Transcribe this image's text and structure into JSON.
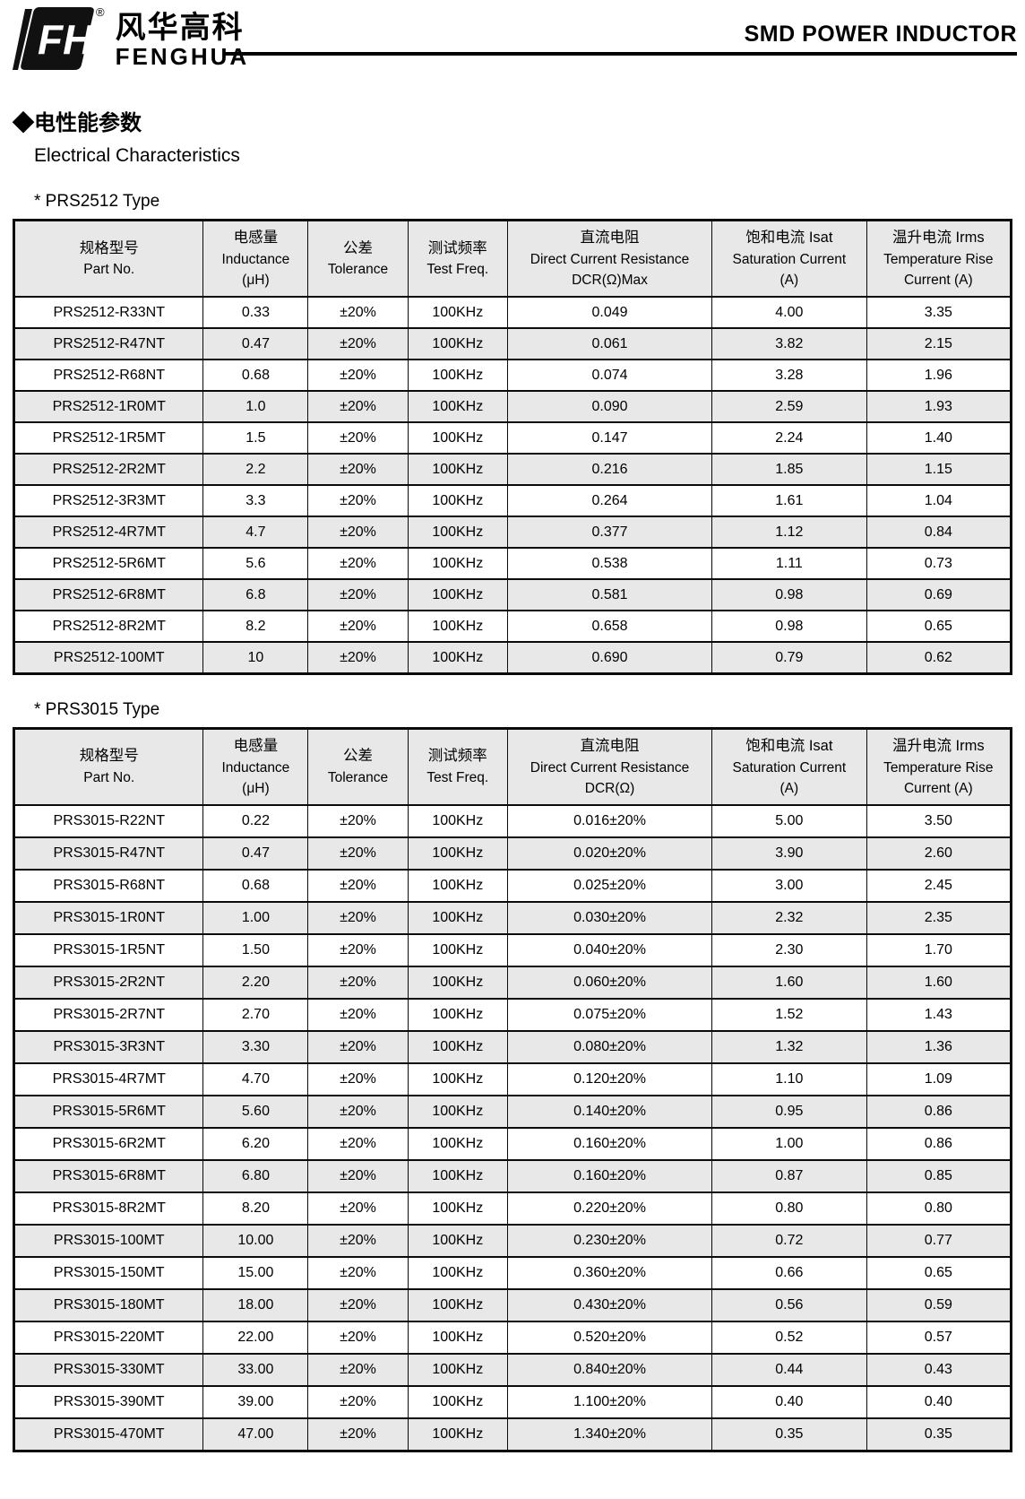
{
  "header": {
    "brand_cn": "风华高科",
    "brand_en": "FENGHUA",
    "registered_mark": "®",
    "doc_title": "SMD POWER INDUCTOR"
  },
  "section": {
    "title_cn": "◆电性能参数",
    "title_en": "Electrical Characteristics"
  },
  "columns": [
    {
      "key": "part_no",
      "lines": [
        "规格型号",
        "Part No."
      ]
    },
    {
      "key": "inductance",
      "lines": [
        "电感量",
        "Inductance",
        "(μH)"
      ]
    },
    {
      "key": "tolerance",
      "lines": [
        "公差",
        "Tolerance"
      ]
    },
    {
      "key": "test_freq",
      "lines": [
        "测试频率",
        "Test Freq."
      ]
    },
    {
      "key": "dcr",
      "lines": [
        "直流电阻",
        "Direct Current Resistance",
        "@DCR_UNIT@"
      ]
    },
    {
      "key": "isat",
      "lines": [
        "饱和电流  Isat",
        "Saturation Current",
        "(A)"
      ]
    },
    {
      "key": "irms",
      "lines": [
        "温升电流  Irms",
        "Temperature Rise",
        "Current (A)"
      ]
    }
  ],
  "tables": [
    {
      "label": "*  PRS2512 Type",
      "dcr_unit": "DCR(Ω)Max",
      "rows": [
        [
          "PRS2512-R33NT",
          "0.33",
          "±20%",
          "100KHz",
          "0.049",
          "4.00",
          "3.35"
        ],
        [
          "PRS2512-R47NT",
          "0.47",
          "±20%",
          "100KHz",
          "0.061",
          "3.82",
          "2.15"
        ],
        [
          "PRS2512-R68NT",
          "0.68",
          "±20%",
          "100KHz",
          "0.074",
          "3.28",
          "1.96"
        ],
        [
          "PRS2512-1R0MT",
          "1.0",
          "±20%",
          "100KHz",
          "0.090",
          "2.59",
          "1.93"
        ],
        [
          "PRS2512-1R5MT",
          "1.5",
          "±20%",
          "100KHz",
          "0.147",
          "2.24",
          "1.40"
        ],
        [
          "PRS2512-2R2MT",
          "2.2",
          "±20%",
          "100KHz",
          "0.216",
          "1.85",
          "1.15"
        ],
        [
          "PRS2512-3R3MT",
          "3.3",
          "±20%",
          "100KHz",
          "0.264",
          "1.61",
          "1.04"
        ],
        [
          "PRS2512-4R7MT",
          "4.7",
          "±20%",
          "100KHz",
          "0.377",
          "1.12",
          "0.84"
        ],
        [
          "PRS2512-5R6MT",
          "5.6",
          "±20%",
          "100KHz",
          "0.538",
          "1.11",
          "0.73"
        ],
        [
          "PRS2512-6R8MT",
          "6.8",
          "±20%",
          "100KHz",
          "0.581",
          "0.98",
          "0.69"
        ],
        [
          "PRS2512-8R2MT",
          "8.2",
          "±20%",
          "100KHz",
          "0.658",
          "0.98",
          "0.65"
        ],
        [
          "PRS2512-100MT",
          "10",
          "±20%",
          "100KHz",
          "0.690",
          "0.79",
          "0.62"
        ]
      ]
    },
    {
      "label": "*  PRS3015 Type",
      "dcr_unit": "DCR(Ω)",
      "rows": [
        [
          "PRS3015-R22NT",
          "0.22",
          "±20%",
          "100KHz",
          "0.016±20%",
          "5.00",
          "3.50"
        ],
        [
          "PRS3015-R47NT",
          "0.47",
          "±20%",
          "100KHz",
          "0.020±20%",
          "3.90",
          "2.60"
        ],
        [
          "PRS3015-R68NT",
          "0.68",
          "±20%",
          "100KHz",
          "0.025±20%",
          "3.00",
          "2.45"
        ],
        [
          "PRS3015-1R0NT",
          "1.00",
          "±20%",
          "100KHz",
          "0.030±20%",
          "2.32",
          "2.35"
        ],
        [
          "PRS3015-1R5NT",
          "1.50",
          "±20%",
          "100KHz",
          "0.040±20%",
          "2.30",
          "1.70"
        ],
        [
          "PRS3015-2R2NT",
          "2.20",
          "±20%",
          "100KHz",
          "0.060±20%",
          "1.60",
          "1.60"
        ],
        [
          "PRS3015-2R7NT",
          "2.70",
          "±20%",
          "100KHz",
          "0.075±20%",
          "1.52",
          "1.43"
        ],
        [
          "PRS3015-3R3NT",
          "3.30",
          "±20%",
          "100KHz",
          "0.080±20%",
          "1.32",
          "1.36"
        ],
        [
          "PRS3015-4R7MT",
          "4.70",
          "±20%",
          "100KHz",
          "0.120±20%",
          "1.10",
          "1.09"
        ],
        [
          "PRS3015-5R6MT",
          "5.60",
          "±20%",
          "100KHz",
          "0.140±20%",
          "0.95",
          "0.86"
        ],
        [
          "PRS3015-6R2MT",
          "6.20",
          "±20%",
          "100KHz",
          "0.160±20%",
          "1.00",
          "0.86"
        ],
        [
          "PRS3015-6R8MT",
          "6.80",
          "±20%",
          "100KHz",
          "0.160±20%",
          "0.87",
          "0.85"
        ],
        [
          "PRS3015-8R2MT",
          "8.20",
          "±20%",
          "100KHz",
          "0.220±20%",
          "0.80",
          "0.80"
        ],
        [
          "PRS3015-100MT",
          "10.00",
          "±20%",
          "100KHz",
          "0.230±20%",
          "0.72",
          "0.77"
        ],
        [
          "PRS3015-150MT",
          "15.00",
          "±20%",
          "100KHz",
          "0.360±20%",
          "0.66",
          "0.65"
        ],
        [
          "PRS3015-180MT",
          "18.00",
          "±20%",
          "100KHz",
          "0.430±20%",
          "0.56",
          "0.59"
        ],
        [
          "PRS3015-220MT",
          "22.00",
          "±20%",
          "100KHz",
          "0.520±20%",
          "0.52",
          "0.57"
        ],
        [
          "PRS3015-330MT",
          "33.00",
          "±20%",
          "100KHz",
          "0.840±20%",
          "0.44",
          "0.43"
        ],
        [
          "PRS3015-390MT",
          "39.00",
          "±20%",
          "100KHz",
          "1.100±20%",
          "0.40",
          "0.40"
        ],
        [
          "PRS3015-470MT",
          "47.00",
          "±20%",
          "100KHz",
          "1.340±20%",
          "0.35",
          "0.35"
        ]
      ]
    }
  ],
  "colors": {
    "row_alt_bg": "#e8e8e8",
    "header_bg": "#e8e8e8",
    "border": "#0a0a0a",
    "ink": "#000000"
  }
}
